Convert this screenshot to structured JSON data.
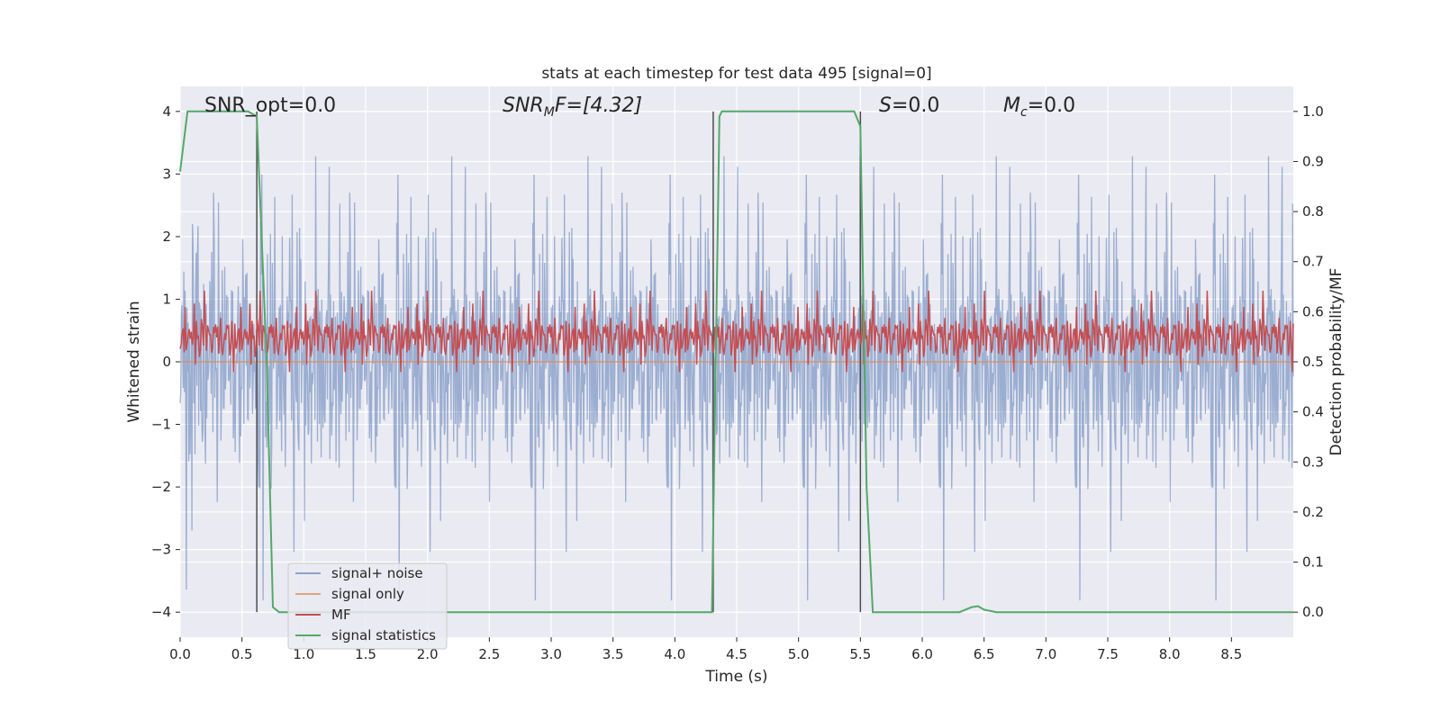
{
  "chart_data": {
    "type": "line",
    "title": "stats at each timestep for test data 495 [signal=0]",
    "xlabel": "Time (s)",
    "ylabel_left": "Whitened strain",
    "ylabel_right": "Detection probability/MF",
    "xlim": [
      0,
      9
    ],
    "ylim_left": [
      -4.4,
      4.4
    ],
    "ylim_right": [
      -0.05,
      1.05
    ],
    "x_ticks": [
      "0.0",
      "0.5",
      "1.0",
      "1.5",
      "2.0",
      "2.5",
      "3.0",
      "3.5",
      "4.0",
      "4.5",
      "5.0",
      "5.5",
      "6.0",
      "6.5",
      "7.0",
      "7.5",
      "8.0",
      "8.5"
    ],
    "y_left_ticks": [
      "4",
      "3",
      "2",
      "1",
      "0",
      "−1",
      "−2",
      "−3",
      "−4"
    ],
    "y_right_ticks": [
      "1.0",
      "0.9",
      "0.8",
      "0.7",
      "0.6",
      "0.5",
      "0.4",
      "0.3",
      "0.2",
      "0.1",
      "0.0"
    ],
    "grid": true,
    "legend_position": "lower-left",
    "colors": {
      "background": "#eaeaf2",
      "grid": "#ffffff",
      "noise": "#4c72b0",
      "signal_only": "#dd8452",
      "mf": "#c44e52",
      "statistics": "#55a868",
      "vlines": "#4d4d4d"
    },
    "annotations": {
      "snr_opt": "SNR_opt=0.0",
      "snr_mf_base": "SNR",
      "snr_mf_sub": "M",
      "snr_mf_rest": "F=[4.32]",
      "s_base": "S",
      "s_rest": "=0.0",
      "mc_base": "M",
      "mc_sub": "c",
      "mc_rest": "=0.0"
    },
    "vertical_lines_x": [
      0.62,
      4.31,
      5.5
    ],
    "vertical_lines_range_left": [
      -4,
      4
    ],
    "series": [
      {
        "name": "signal+ noise",
        "axis": "left",
        "kind": "noise",
        "amplitude_envelope": 2.6,
        "x_range": [
          0,
          9
        ],
        "description_values": "white noise, roughly uniform envelope about ±2.5 with peaks near ±4"
      },
      {
        "name": "signal only",
        "axis": "left",
        "x": [
          0,
          9
        ],
        "y": [
          0,
          0
        ]
      },
      {
        "name": "MF",
        "axis": "right",
        "kind": "mf",
        "baseline": 0.55,
        "spread": 0.04,
        "x_range": [
          0,
          9
        ]
      },
      {
        "name": "signal statistics",
        "axis": "right",
        "x": [
          0,
          0.06,
          0.55,
          0.62,
          0.7,
          0.75,
          0.8,
          0.85,
          4.3,
          4.36,
          4.38,
          4.45,
          5.45,
          5.5,
          5.55,
          5.6,
          6.3,
          6.4,
          6.45,
          6.5,
          6.6,
          9.0
        ],
        "y": [
          0.88,
          1.0,
          1.0,
          0.99,
          0.5,
          0.01,
          0.0,
          0.0,
          0.0,
          0.99,
          1.0,
          1.0,
          1.0,
          0.97,
          0.25,
          0.0,
          0.0,
          0.01,
          0.012,
          0.005,
          0.0,
          0.0
        ]
      }
    ]
  }
}
